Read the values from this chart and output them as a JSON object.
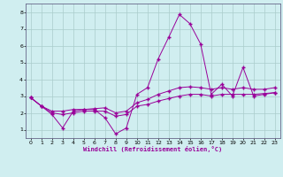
{
  "xlabel": "Windchill (Refroidissement éolien,°C)",
  "ylabel": "",
  "xlim": [
    -0.5,
    23.5
  ],
  "ylim": [
    0.5,
    8.5
  ],
  "xticks": [
    0,
    1,
    2,
    3,
    4,
    5,
    6,
    7,
    8,
    9,
    10,
    11,
    12,
    13,
    14,
    15,
    16,
    17,
    18,
    19,
    20,
    21,
    22,
    23
  ],
  "yticks": [
    1,
    2,
    3,
    4,
    5,
    6,
    7,
    8
  ],
  "bg_color": "#d0eef0",
  "grid_color": "#aacccc",
  "line_color": "#990099",
  "series1_x": [
    0,
    1,
    2,
    3,
    4,
    5,
    6,
    7,
    8,
    9,
    10,
    11,
    12,
    13,
    14,
    15,
    16,
    17,
    18,
    19,
    20,
    21,
    22,
    23
  ],
  "series1_y": [
    2.9,
    2.4,
    1.9,
    1.1,
    2.1,
    2.2,
    2.2,
    1.7,
    0.75,
    1.1,
    3.1,
    3.5,
    5.2,
    6.5,
    7.85,
    7.3,
    6.1,
    3.1,
    3.7,
    3.0,
    4.7,
    3.0,
    3.1,
    3.2
  ],
  "series2_x": [
    0,
    1,
    2,
    3,
    4,
    5,
    6,
    7,
    8,
    9,
    10,
    11,
    12,
    13,
    14,
    15,
    16,
    17,
    18,
    19,
    20,
    21,
    22,
    23
  ],
  "series2_y": [
    2.9,
    2.4,
    2.0,
    1.9,
    2.0,
    2.1,
    2.1,
    2.1,
    1.8,
    1.9,
    2.4,
    2.5,
    2.7,
    2.85,
    3.0,
    3.1,
    3.1,
    3.0,
    3.1,
    3.1,
    3.1,
    3.1,
    3.15,
    3.2
  ],
  "series3_x": [
    0,
    1,
    2,
    3,
    4,
    5,
    6,
    7,
    8,
    9,
    10,
    11,
    12,
    13,
    14,
    15,
    16,
    17,
    18,
    19,
    20,
    21,
    22,
    23
  ],
  "series3_y": [
    2.9,
    2.4,
    2.1,
    2.1,
    2.2,
    2.2,
    2.25,
    2.3,
    2.0,
    2.1,
    2.6,
    2.8,
    3.1,
    3.3,
    3.5,
    3.55,
    3.5,
    3.4,
    3.5,
    3.4,
    3.5,
    3.4,
    3.4,
    3.5
  ],
  "marker": "+"
}
